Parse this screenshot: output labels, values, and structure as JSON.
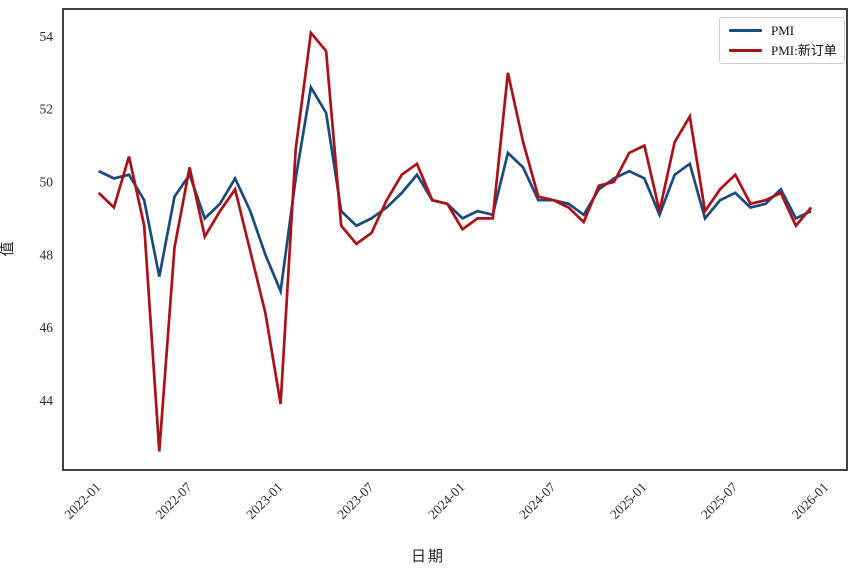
{
  "chart_data": {
    "type": "line",
    "title": "",
    "xlabel": "日期",
    "ylabel": "值",
    "grid": false,
    "legend_position": "upper right",
    "ylim": [
      42.1,
      54.75
    ],
    "yticks": [
      44,
      46,
      48,
      50,
      52,
      54
    ],
    "xticks": [
      "2022-01",
      "2022-07",
      "2023-01",
      "2023-07",
      "2024-01",
      "2024-07",
      "2025-01",
      "2025-07",
      "2026-01"
    ],
    "x": [
      "2022-01",
      "2022-02",
      "2022-03",
      "2022-04",
      "2022-05",
      "2022-06",
      "2022-07",
      "2022-08",
      "2022-09",
      "2022-10",
      "2022-11",
      "2022-12",
      "2023-01",
      "2023-02",
      "2023-03",
      "2023-04",
      "2023-05",
      "2023-06",
      "2023-07",
      "2023-08",
      "2023-09",
      "2023-10",
      "2023-11",
      "2023-12",
      "2024-01",
      "2024-02",
      "2024-03",
      "2024-04",
      "2024-05",
      "2024-06",
      "2024-07",
      "2024-08",
      "2024-09",
      "2024-10",
      "2024-11",
      "2024-12",
      "2025-01",
      "2025-02",
      "2025-03",
      "2025-04",
      "2025-05",
      "2025-06",
      "2025-07",
      "2025-08",
      "2025-09",
      "2025-10",
      "2025-11",
      "2025-12"
    ],
    "series": [
      {
        "name": "PMI",
        "color": "#1b4a7d",
        "values": [
          50.3,
          50.1,
          50.2,
          49.5,
          47.4,
          49.6,
          50.2,
          49.0,
          49.4,
          50.1,
          49.2,
          48.0,
          47.0,
          50.1,
          52.6,
          51.9,
          49.2,
          48.8,
          49.0,
          49.3,
          49.7,
          50.2,
          49.5,
          49.4,
          49.0,
          49.2,
          49.1,
          50.8,
          50.4,
          49.5,
          49.5,
          49.4,
          49.1,
          49.8,
          50.1,
          50.3,
          50.1,
          49.1,
          50.2,
          50.5,
          49.0,
          49.5,
          49.7,
          49.3,
          49.4,
          49.8,
          49.0,
          49.2
        ]
      },
      {
        "name": "PMI:新订单",
        "color": "#ab1117",
        "values": [
          49.7,
          49.3,
          50.7,
          48.8,
          42.6,
          48.2,
          50.4,
          48.5,
          49.2,
          49.8,
          48.1,
          46.4,
          43.9,
          50.9,
          54.1,
          53.6,
          48.8,
          48.3,
          48.6,
          49.5,
          50.2,
          50.5,
          49.5,
          49.4,
          48.7,
          49.0,
          49.0,
          53.0,
          51.1,
          49.6,
          49.5,
          49.3,
          48.9,
          49.9,
          50.0,
          50.8,
          51.0,
          49.2,
          51.1,
          51.8,
          49.2,
          49.8,
          50.2,
          49.4,
          49.5,
          49.7,
          48.8,
          49.3
        ]
      }
    ]
  }
}
